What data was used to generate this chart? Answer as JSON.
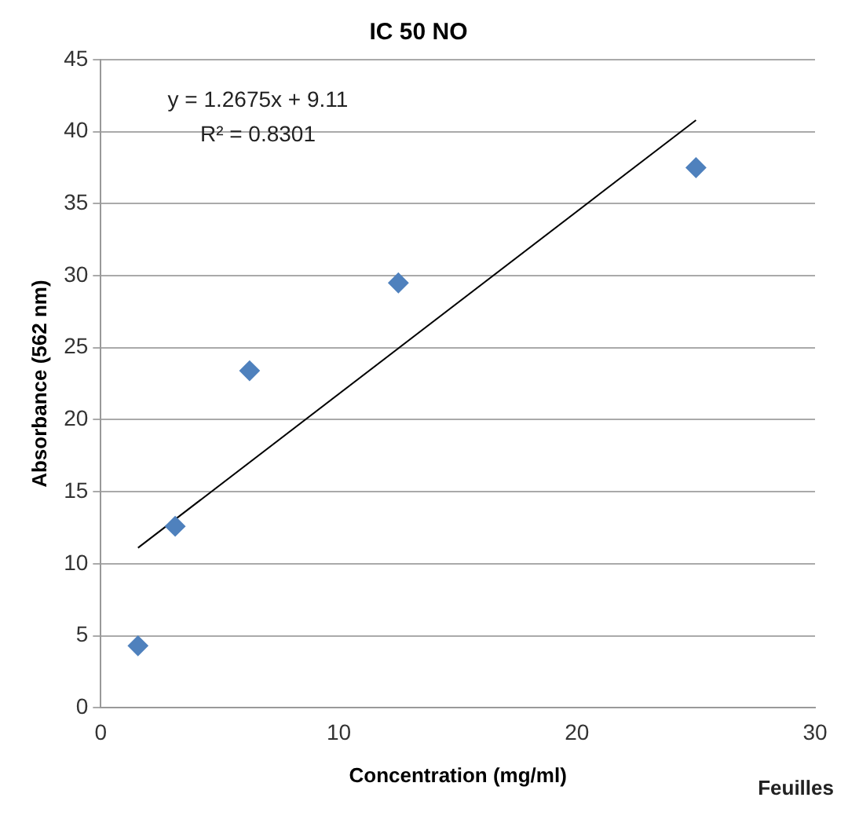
{
  "chart_data": {
    "type": "scatter",
    "title": "IC 50 NO",
    "xlabel": "Concentration (mg/ml)",
    "ylabel": "Absorbance (562 nm)",
    "series": [
      {
        "color": "#4f81bd",
        "x": [
          1.5625,
          3.125,
          6.25,
          12.5,
          25
        ],
        "values": [
          4.3,
          12.6,
          23.4,
          29.5,
          37.5
        ],
        "marker": "diamond"
      },
      {
        "type": "line",
        "color": "#000000",
        "x": [
          1.5625,
          25
        ],
        "values": [
          11.1,
          40.8
        ],
        "marker": "none",
        "line_style": "solid"
      }
    ],
    "xlim": [
      0,
      30
    ],
    "xticks": [
      0,
      10,
      20,
      30
    ],
    "ylim": [
      0,
      45
    ],
    "yticks": [
      0,
      5,
      10,
      15,
      20,
      25,
      30,
      35,
      40,
      45
    ],
    "grid": "y",
    "legend": false,
    "annotations": [
      "y = 1.2675x + 9.11",
      "R² = 0.8301",
      "Feuilles"
    ]
  }
}
